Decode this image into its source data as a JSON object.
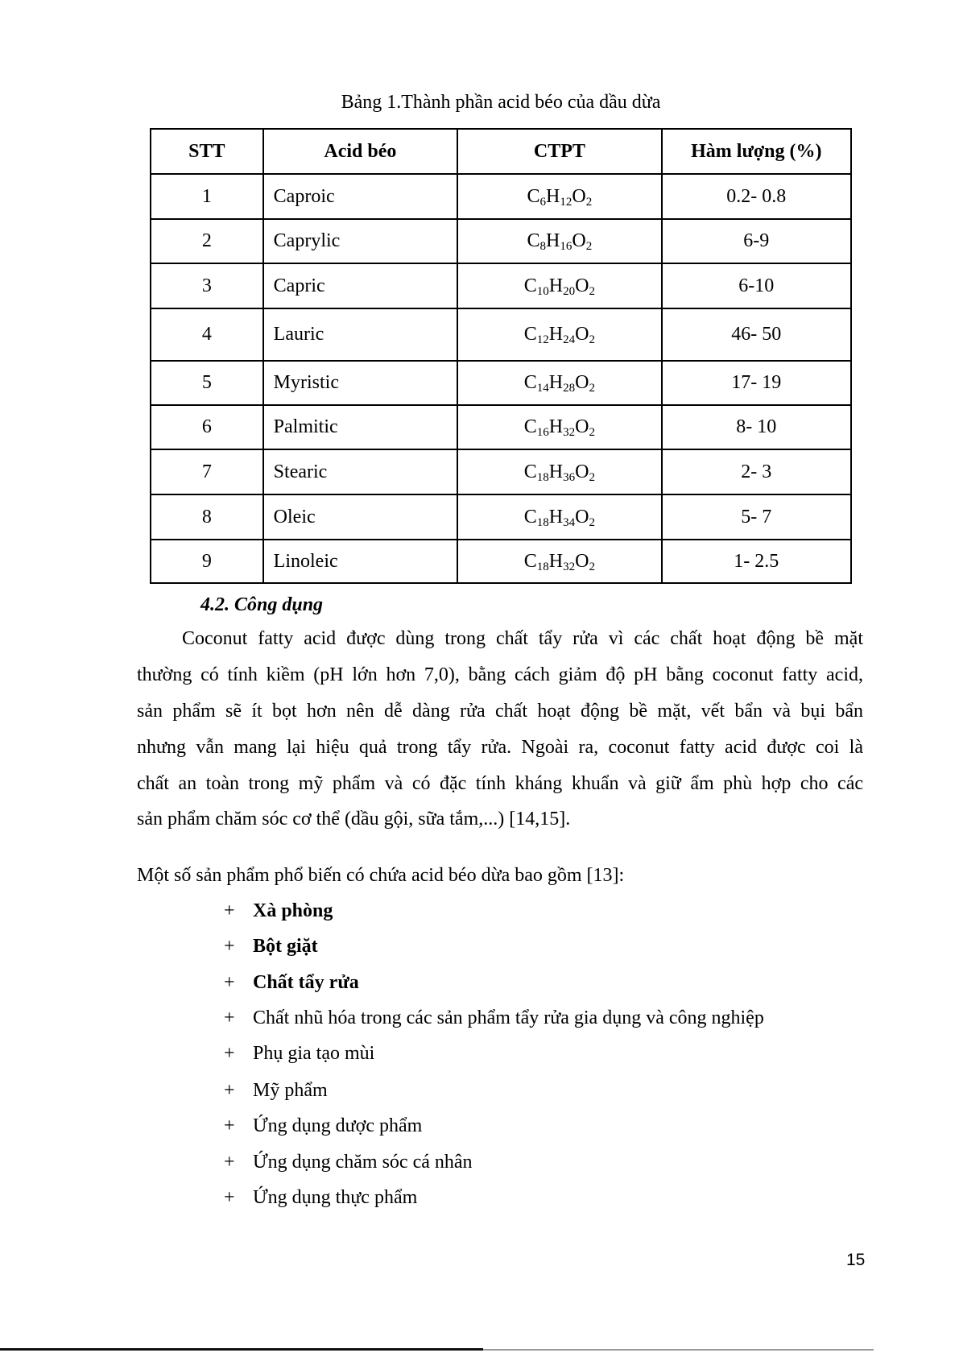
{
  "caption": "Bảng 1.Thành phần acid béo của dầu dừa",
  "table": {
    "headers": [
      "STT",
      "Acid béo",
      "CTPT",
      "Hàm lượng (%)"
    ],
    "rows": [
      {
        "stt": "1",
        "name": "Caproic",
        "formula": [
          "C",
          "6",
          "H",
          "12",
          "O",
          "2"
        ],
        "content": "0.2- 0.8"
      },
      {
        "stt": "2",
        "name": "Caprylic",
        "formula": [
          "C",
          "8",
          "H",
          "16",
          "O",
          "2"
        ],
        "content": "6-9"
      },
      {
        "stt": "3",
        "name": "Capric",
        "formula": [
          "C",
          "10",
          "H",
          "20",
          "O",
          "2"
        ],
        "content": "6-10"
      },
      {
        "stt": "4",
        "name": "Lauric",
        "formula": [
          "C",
          "12",
          "H",
          "24",
          "O",
          "2"
        ],
        "content": "46- 50"
      },
      {
        "stt": "5",
        "name": "Myristic",
        "formula": [
          "C",
          "14",
          "H",
          "28",
          "O",
          "2"
        ],
        "content": "17- 19"
      },
      {
        "stt": "6",
        "name": "Palmitic",
        "formula": [
          "C",
          "16",
          "H",
          "32",
          "O",
          "2"
        ],
        "content": "8- 10"
      },
      {
        "stt": "7",
        "name": "Stearic",
        "formula": [
          "C",
          "18",
          "H",
          "36",
          "O",
          "2"
        ],
        "content": "2- 3"
      },
      {
        "stt": "8",
        "name": "Oleic",
        "formula": [
          "C",
          "18",
          "H",
          "34",
          "O",
          "2"
        ],
        "content": "5- 7"
      },
      {
        "stt": "9",
        "name": "Linoleic",
        "formula": [
          "C",
          "18",
          "H",
          "32",
          "O",
          "2"
        ],
        "content": "1- 2.5"
      }
    ]
  },
  "section_heading": "4.2. Công dụng",
  "paragraph_lines": [
    "Coconut fatty acid được dùng trong chất tẩy rửa vì các chất hoạt động bề mặt",
    "thường có tính kiềm (pH lớn hơn 7,0), bằng cách giảm độ pH bằng coconut fatty acid,",
    "sản phẩm sẽ ít bọt hơn nên dễ dàng rửa chất hoạt động bề mặt, vết bẩn và bụi bẩn",
    "nhưng vẫn mang lại hiệu quả trong tẩy rửa. Ngoài ra, coconut fatty acid được coi là",
    "chất an toàn trong mỹ phẩm và có đặc tính kháng khuẩn và giữ ẩm phù hợp cho các",
    "sản phẩm chăm sóc cơ thể (dầu gội, sữa tắm,...) [14,15]."
  ],
  "intro": "Một số sản phẩm phổ biến có chứa acid béo dừa bao gồm [13]:",
  "bullet_symbol": "+",
  "bullets": [
    {
      "text": "Xà phòng",
      "bold": true
    },
    {
      "text": "Bột giặt",
      "bold": true
    },
    {
      "text": "Chất tẩy rửa",
      "bold": true
    },
    {
      "text": "Chất nhũ hóa trong các sản phẩm tẩy rửa gia dụng và công nghiệp",
      "bold": false
    },
    {
      "text": "Phụ gia tạo mùi",
      "bold": false
    },
    {
      "text": "Mỹ phẩm",
      "bold": false
    },
    {
      "text": "Ứng dụng dược phẩm",
      "bold": false
    },
    {
      "text": "Ứng dụng chăm sóc cá nhân",
      "bold": false
    },
    {
      "text": "Ứng dụng thực phẩm",
      "bold": false
    }
  ],
  "page_number": "15"
}
